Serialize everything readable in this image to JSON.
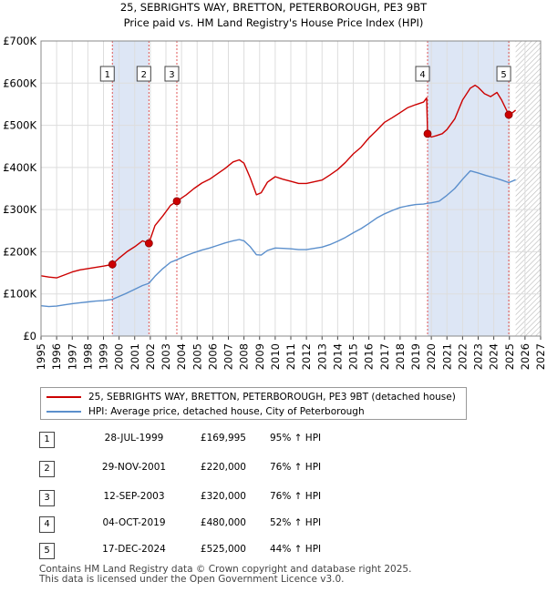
{
  "title_line1": "25, SEBRIGHTS WAY, BRETTON, PETERBOROUGH, PE3 9BT",
  "title_line2": "Price paid vs. HM Land Registry's House Price Index (HPI)",
  "colors": {
    "price": "#cc0000",
    "hpi": "#5b8fcc",
    "shade": "#dde6f5",
    "hatch": "#b8b8b8"
  },
  "chart_data": {
    "type": "line",
    "xlim": [
      1995,
      2027
    ],
    "ylim": [
      0,
      700000
    ],
    "x_ticks": [
      "1995",
      "1996",
      "1997",
      "1998",
      "1999",
      "2000",
      "2001",
      "2002",
      "2003",
      "2004",
      "2005",
      "2006",
      "2007",
      "2008",
      "2009",
      "2010",
      "2011",
      "2012",
      "2013",
      "2014",
      "2015",
      "2016",
      "2017",
      "2018",
      "2019",
      "2020",
      "2021",
      "2022",
      "2023",
      "2024",
      "2025",
      "2026",
      "2027"
    ],
    "y_ticks": [
      {
        "value": 0,
        "label": "£0"
      },
      {
        "value": 100000,
        "label": "£100K"
      },
      {
        "value": 200000,
        "label": "£200K"
      },
      {
        "value": 300000,
        "label": "£300K"
      },
      {
        "value": 400000,
        "label": "£400K"
      },
      {
        "value": 500000,
        "label": "£500K"
      },
      {
        "value": 600000,
        "label": "£600K"
      },
      {
        "value": 700000,
        "label": "£700K"
      }
    ],
    "forecast_start": 2025.4,
    "series": [
      {
        "name": "25, SEBRIGHTS WAY, BRETTON, PETERBOROUGH, PE3 9BT (detached house)",
        "color": "#cc0000",
        "x": [
          1995.0,
          1995.5,
          1996.0,
          1996.5,
          1997.0,
          1997.5,
          1998.0,
          1998.5,
          1999.0,
          1999.57,
          2000.0,
          2000.5,
          2001.0,
          2001.5,
          2001.91,
          2002.3,
          2002.8,
          2003.3,
          2003.7,
          2004.3,
          2004.8,
          2005.3,
          2005.8,
          2006.3,
          2006.8,
          2007.3,
          2007.7,
          2008.0,
          2008.4,
          2008.8,
          2009.1,
          2009.5,
          2010.0,
          2010.5,
          2011.0,
          2011.5,
          2012.0,
          2012.5,
          2013.0,
          2013.5,
          2014.0,
          2014.5,
          2015.0,
          2015.5,
          2016.0,
          2016.5,
          2017.0,
          2017.5,
          2018.0,
          2018.5,
          2019.0,
          2019.5,
          2019.7,
          2019.76,
          2020.0,
          2020.3,
          2020.7,
          2021.0,
          2021.5,
          2022.0,
          2022.5,
          2022.8,
          2023.0,
          2023.4,
          2023.8,
          2024.2,
          2024.5,
          2024.96,
          2025.2,
          2025.4
        ],
        "values": [
          143000,
          140000,
          138000,
          145000,
          152000,
          157000,
          160000,
          163000,
          166000,
          169995,
          185000,
          200000,
          212000,
          226000,
          220000,
          262000,
          285000,
          310000,
          320000,
          335000,
          350000,
          363000,
          372000,
          385000,
          398000,
          413000,
          418000,
          410000,
          375000,
          335000,
          340000,
          365000,
          378000,
          372000,
          367000,
          362000,
          362000,
          366000,
          370000,
          382000,
          395000,
          412000,
          432000,
          448000,
          470000,
          488000,
          507000,
          518000,
          530000,
          542000,
          549000,
          555000,
          565000,
          480000,
          472000,
          475000,
          480000,
          490000,
          515000,
          560000,
          588000,
          595000,
          590000,
          575000,
          568000,
          578000,
          560000,
          525000,
          530000,
          536000
        ]
      },
      {
        "name": "HPI: Average price, detached house, City of Peterborough",
        "color": "#5b8fcc",
        "x": [
          1995.0,
          1995.5,
          1996.0,
          1996.5,
          1997.0,
          1997.5,
          1998.0,
          1998.5,
          1999.0,
          1999.57,
          2000.0,
          2000.5,
          2001.0,
          2001.5,
          2001.91,
          2002.3,
          2002.8,
          2003.3,
          2003.7,
          2004.3,
          2004.8,
          2005.3,
          2005.8,
          2006.3,
          2006.8,
          2007.3,
          2007.7,
          2008.0,
          2008.4,
          2008.8,
          2009.1,
          2009.5,
          2010.0,
          2010.5,
          2011.0,
          2011.5,
          2012.0,
          2012.5,
          2013.0,
          2013.5,
          2014.0,
          2014.5,
          2015.0,
          2015.5,
          2016.0,
          2016.5,
          2017.0,
          2017.5,
          2018.0,
          2018.5,
          2019.0,
          2019.5,
          2019.76,
          2020.0,
          2020.5,
          2021.0,
          2021.5,
          2022.0,
          2022.5,
          2023.0,
          2023.5,
          2024.0,
          2024.5,
          2024.96,
          2025.4
        ],
        "values": [
          72000,
          70000,
          71000,
          74000,
          77000,
          79000,
          81000,
          83000,
          84000,
          87000,
          94000,
          102000,
          111000,
          120000,
          125000,
          142000,
          160000,
          175000,
          181000,
          191000,
          198000,
          204000,
          209000,
          215000,
          221000,
          226000,
          229000,
          226000,
          212000,
          193000,
          192000,
          203000,
          209000,
          208000,
          207000,
          205000,
          205000,
          208000,
          211000,
          217000,
          225000,
          234000,
          245000,
          255000,
          267000,
          280000,
          290000,
          298000,
          305000,
          309000,
          312000,
          313000,
          315000,
          316000,
          320000,
          334000,
          350000,
          372000,
          392000,
          387000,
          381000,
          376000,
          370000,
          364000,
          371000
        ]
      }
    ],
    "sales": [
      {
        "num": "1",
        "x": 1999.57,
        "value": 169995,
        "date": "28-JUL-1999",
        "price": "£169,995",
        "hpi": "95% ↑ HPI"
      },
      {
        "num": "2",
        "x": 2001.91,
        "value": 220000,
        "date": "29-NOV-2001",
        "price": "£220,000",
        "hpi": "76% ↑ HPI"
      },
      {
        "num": "3",
        "x": 2003.7,
        "value": 320000,
        "date": "12-SEP-2003",
        "price": "£320,000",
        "hpi": "76% ↑ HPI"
      },
      {
        "num": "4",
        "x": 2019.76,
        "value": 480000,
        "date": "04-OCT-2019",
        "price": "£480,000",
        "hpi": "52% ↑ HPI"
      },
      {
        "num": "5",
        "x": 2024.96,
        "value": 525000,
        "date": "17-DEC-2024",
        "price": "£525,000",
        "hpi": "44% ↑ HPI"
      }
    ],
    "shaded_ranges": [
      [
        1999.57,
        2001.91
      ],
      [
        2019.76,
        2024.96
      ]
    ]
  },
  "legend": {
    "price_label": "25, SEBRIGHTS WAY, BRETTON, PETERBOROUGH, PE3 9BT (detached house)",
    "hpi_label": "HPI: Average price, detached house, City of Peterborough"
  },
  "footer": {
    "line1": "Contains HM Land Registry data © Crown copyright and database right 2025.",
    "line2": "This data is licensed under the Open Government Licence v3.0."
  }
}
